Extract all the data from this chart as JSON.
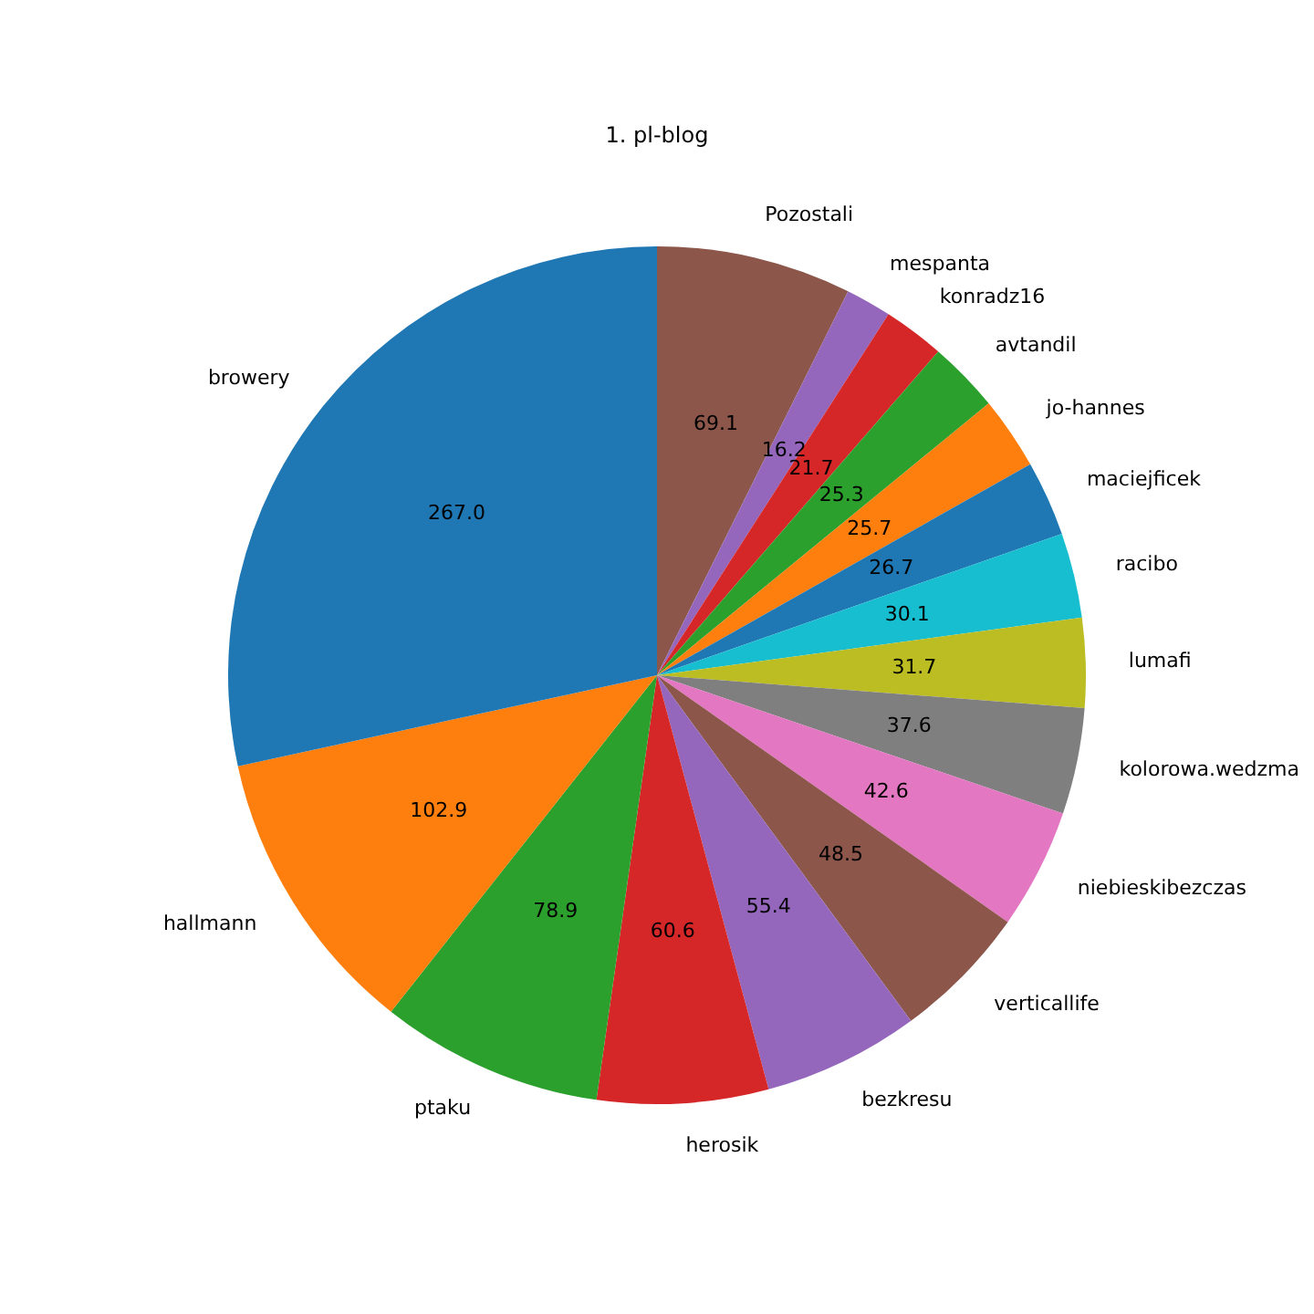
{
  "chart_data": {
    "type": "pie",
    "title": "1. pl-blog",
    "categories": [
      "Pozostali",
      "mespanta",
      "konradz16",
      "avtandil",
      "jo-hannes",
      "maciejficek",
      "racibo",
      "lumafi",
      "kolorowa.wedzma",
      "niebieskibezczas",
      "verticallife",
      "bezkresu",
      "herosik",
      "ptaku",
      "hallmann",
      "browery"
    ],
    "values": [
      69.1,
      16.2,
      21.7,
      25.3,
      25.7,
      26.7,
      30.1,
      31.7,
      37.6,
      42.6,
      48.5,
      55.4,
      60.6,
      78.9,
      102.9,
      267.0
    ],
    "value_labels": [
      "69.1",
      "16.2",
      "21.7",
      "25.3",
      "25.7",
      "26.7",
      "30.1",
      "31.7",
      "37.6",
      "42.6",
      "48.5",
      "55.4",
      "60.6",
      "78.9",
      "102.9",
      "267.0"
    ],
    "colors": [
      "#8c564b",
      "#9467bd",
      "#d62728",
      "#2ca02c",
      "#ff7f0e",
      "#1f77b4",
      "#17becf",
      "#bcbd22",
      "#7f7f7f",
      "#e377c2",
      "#8c564b",
      "#9467bd",
      "#d62728",
      "#2ca02c",
      "#ff7f0e",
      "#1f77b4"
    ],
    "legend": false
  }
}
